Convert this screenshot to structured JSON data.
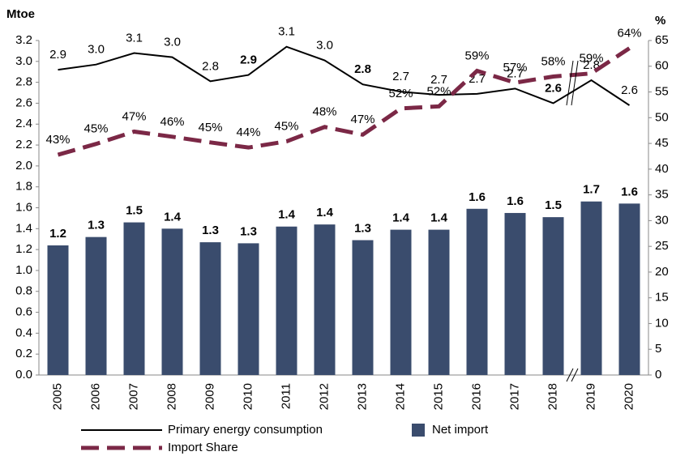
{
  "chart_data": {
    "type": "bar_line",
    "y_unit": "Mtoe",
    "y2_unit": "%",
    "categories": [
      "2005",
      "2006",
      "2007",
      "2008",
      "2009",
      "2010",
      "2011",
      "2012",
      "2013",
      "2014",
      "2015",
      "2016",
      "2017",
      "2018",
      "2019",
      "2020"
    ],
    "ylim": [
      0,
      3.2
    ],
    "yticks": [
      {
        "value": 0,
        "label": "0.0"
      },
      {
        "value": 0.2,
        "label": "0.2"
      },
      {
        "value": 0.4,
        "label": "0.4"
      },
      {
        "value": 0.6,
        "label": "0.6"
      },
      {
        "value": 0.8,
        "label": "0.8"
      },
      {
        "value": 1,
        "label": "1.0"
      },
      {
        "value": 1.2,
        "label": "1.2"
      },
      {
        "value": 1.4,
        "label": "1.4"
      },
      {
        "value": 1.6,
        "label": "1.6"
      },
      {
        "value": 1.8,
        "label": "1.8"
      },
      {
        "value": 2,
        "label": "2.0"
      },
      {
        "value": 2.2,
        "label": "2.2"
      },
      {
        "value": 2.4,
        "label": "2.4"
      },
      {
        "value": 2.6,
        "label": "2.6"
      },
      {
        "value": 2.8,
        "label": "2.8"
      },
      {
        "value": 3,
        "label": "3.0"
      },
      {
        "value": 3.2,
        "label": "3.2"
      }
    ],
    "y2lim": [
      0,
      65
    ],
    "y2ticks": [
      0,
      5,
      10,
      15,
      20,
      25,
      30,
      35,
      40,
      45,
      50,
      55,
      60,
      65
    ],
    "series": [
      {
        "name": "Net import",
        "kind": "bar",
        "color": "#3a4c6d",
        "values": [
          1.24,
          1.32,
          1.46,
          1.4,
          1.27,
          1.26,
          1.42,
          1.44,
          1.29,
          1.39,
          1.39,
          1.59,
          1.55,
          1.51,
          1.66,
          1.64
        ],
        "value_labels": [
          "1.2",
          "1.3",
          "1.5",
          "1.4",
          "1.3",
          "1.3",
          "1.4",
          "1.4",
          "1.3",
          "1.4",
          "1.4",
          "1.6",
          "1.6",
          "1.5",
          "1.7",
          "1.6"
        ]
      },
      {
        "name": "Primary energy consumption",
        "kind": "line",
        "color": "#000000",
        "values": [
          2.92,
          2.97,
          3.08,
          3.04,
          2.81,
          2.87,
          3.14,
          3.01,
          2.78,
          2.71,
          2.68,
          2.69,
          2.74,
          2.6,
          2.82,
          2.58
        ],
        "value_labels": [
          "2.9",
          "3.0",
          "3.1",
          "3.0",
          "2.8",
          "2.9",
          "3.1",
          "3.0",
          "2.8",
          "2.7",
          "2.7",
          "2.7",
          "2.7",
          "2.6",
          "2.8",
          "2.6"
        ]
      },
      {
        "name": "Import Share",
        "kind": "dashed",
        "axis": "y2",
        "color": "#7b2846",
        "values": [
          42.8,
          44.9,
          47.3,
          46.3,
          45.2,
          44.2,
          45.4,
          48.2,
          46.7,
          51.8,
          52.2,
          59.1,
          56.8,
          58.0,
          58.6,
          63.5
        ],
        "value_labels": [
          "43%",
          "45%",
          "47%",
          "46%",
          "45%",
          "44%",
          "45%",
          "48%",
          "47%",
          "52%",
          "52%",
          "59%",
          "57%",
          "58%",
          "59%",
          "64%"
        ]
      }
    ]
  }
}
